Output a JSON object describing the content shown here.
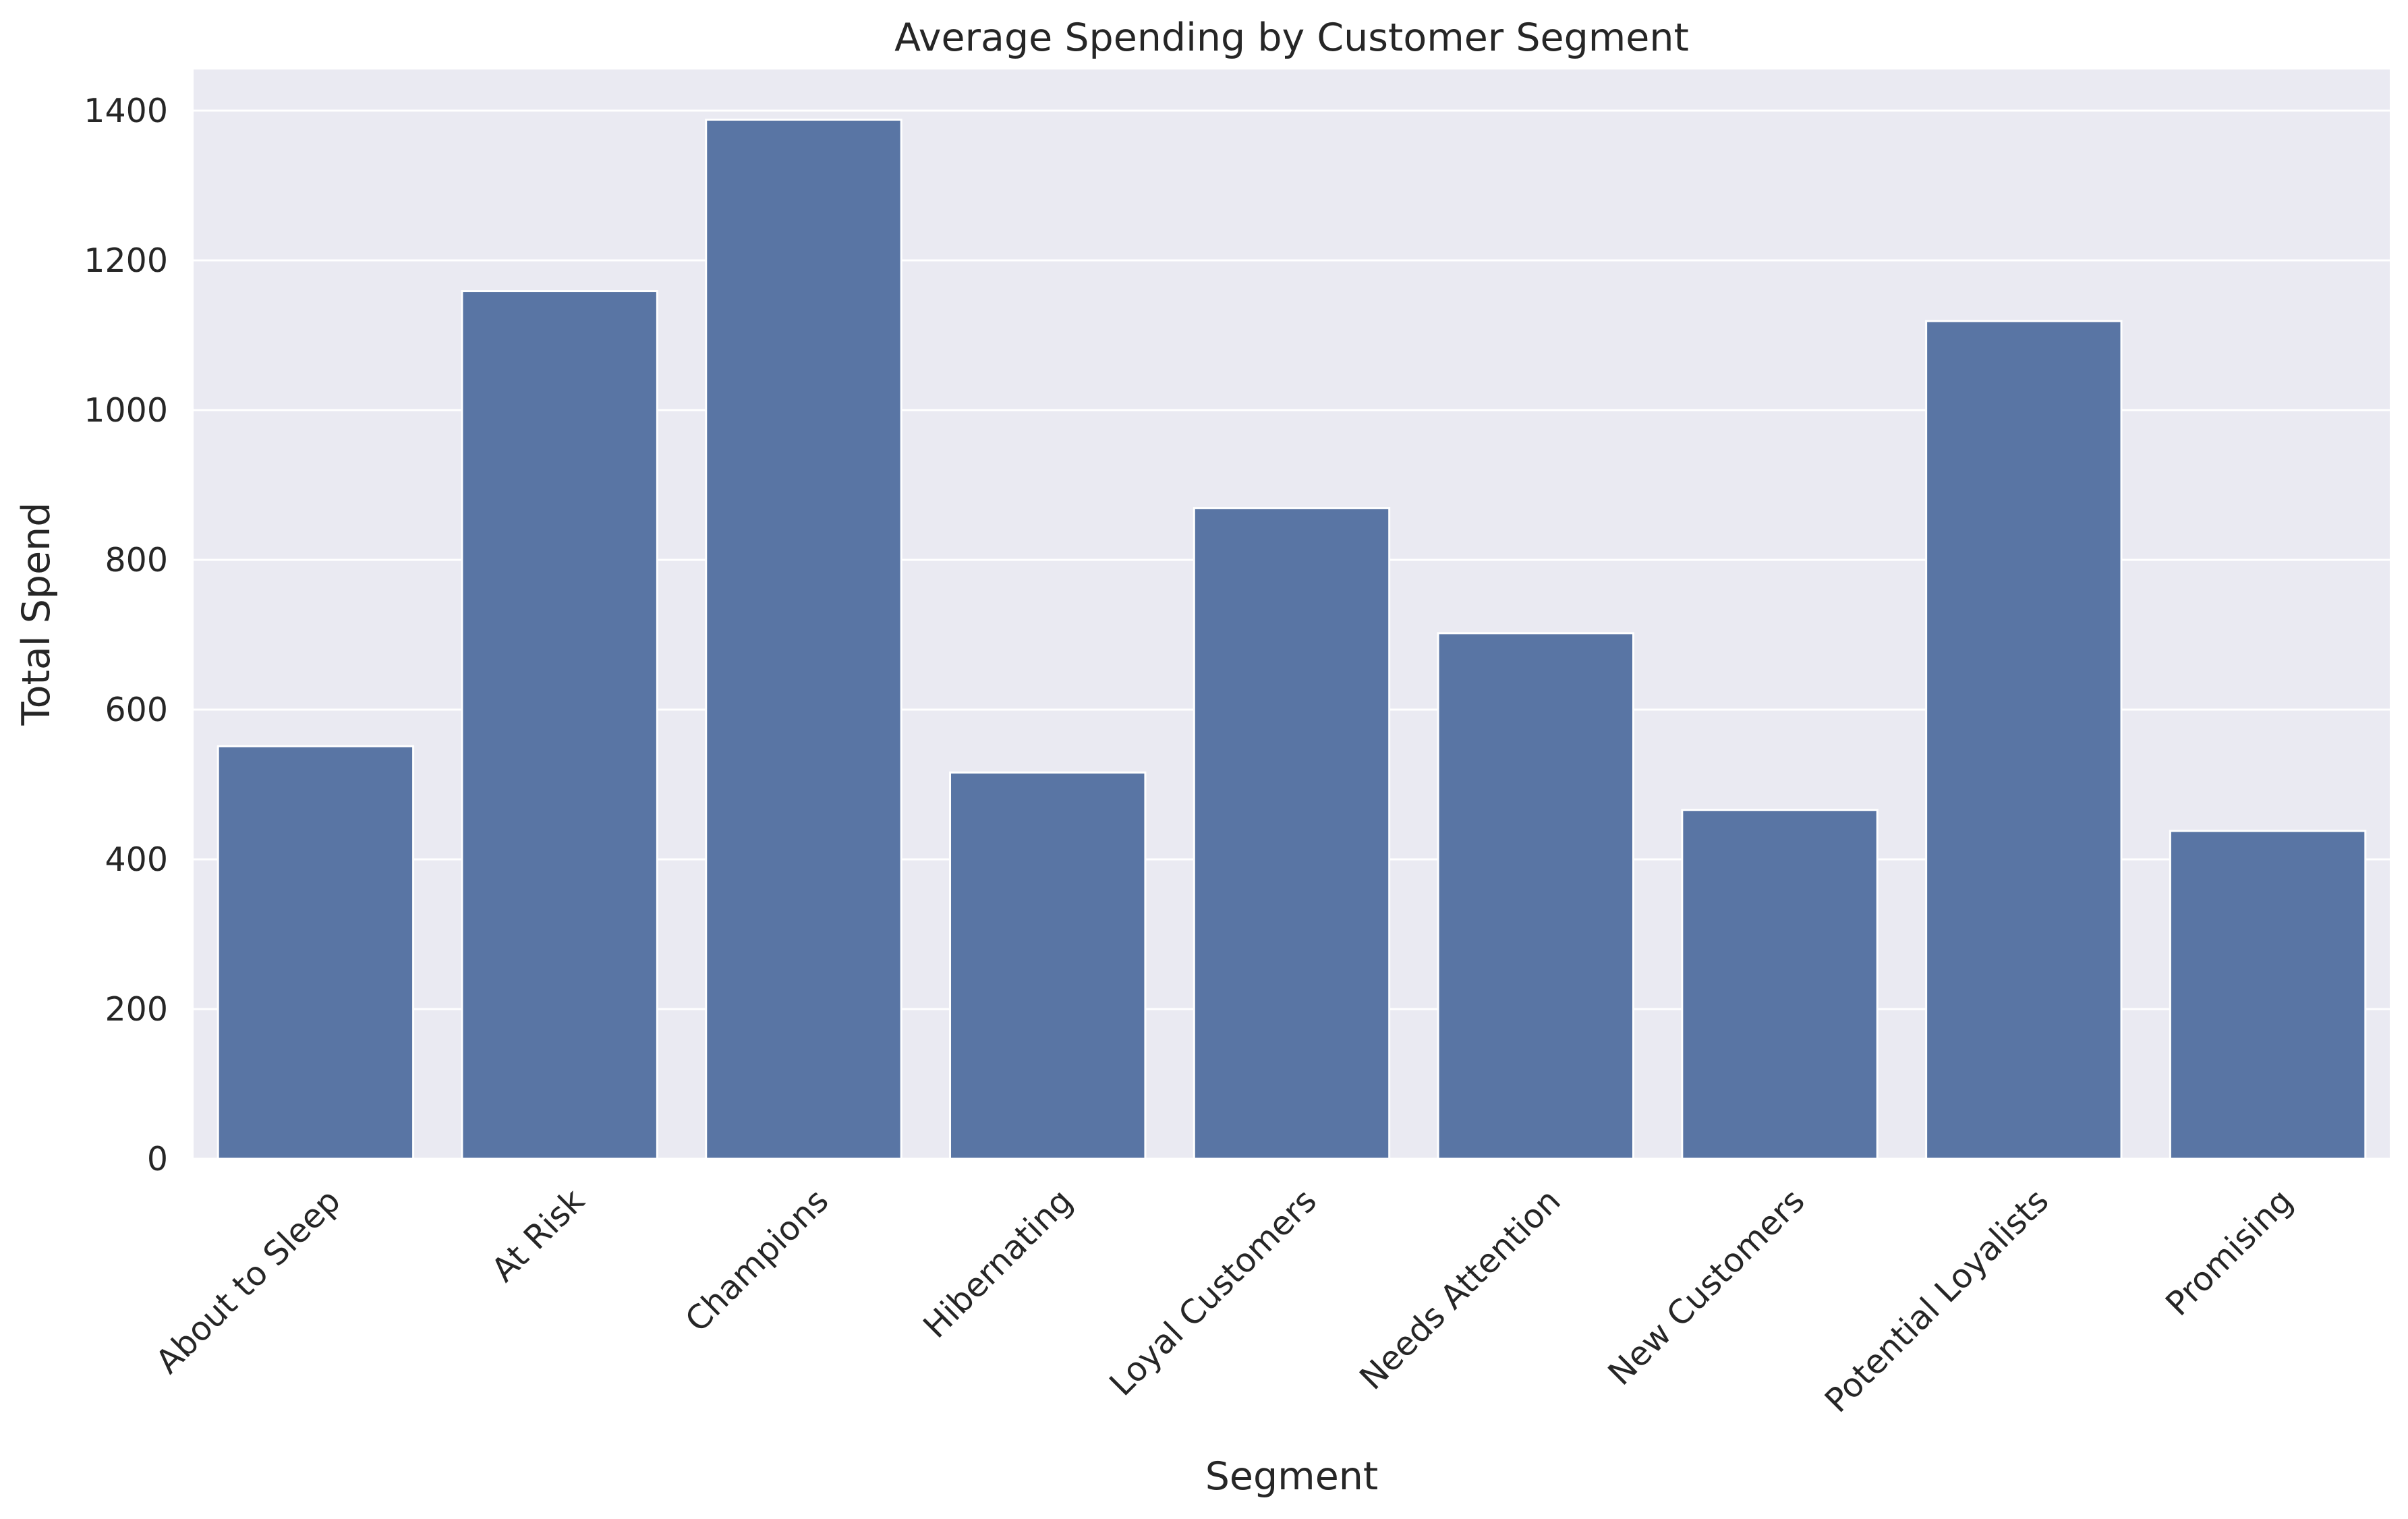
{
  "chart_data": {
    "type": "bar",
    "title": "Average Spending by Customer Segment",
    "xlabel": "Segment",
    "ylabel": "Total Spend",
    "categories": [
      "About to Sleep",
      "At Risk",
      "Champions",
      "Hibernating",
      "Loyal Customers",
      "Needs Attention",
      "New Customers",
      "Potential Loyalists",
      "Promising"
    ],
    "values": [
      551,
      1159,
      1388,
      516,
      869,
      702,
      466,
      1119,
      438
    ],
    "yticks": [
      0,
      200,
      400,
      600,
      800,
      1000,
      1200,
      1400
    ],
    "ylim": [
      0,
      1455
    ],
    "grid": true,
    "legend": "none",
    "colors": {
      "bar": "#5975a4",
      "background": "#eaeaf2",
      "grid": "#ffffff"
    }
  }
}
